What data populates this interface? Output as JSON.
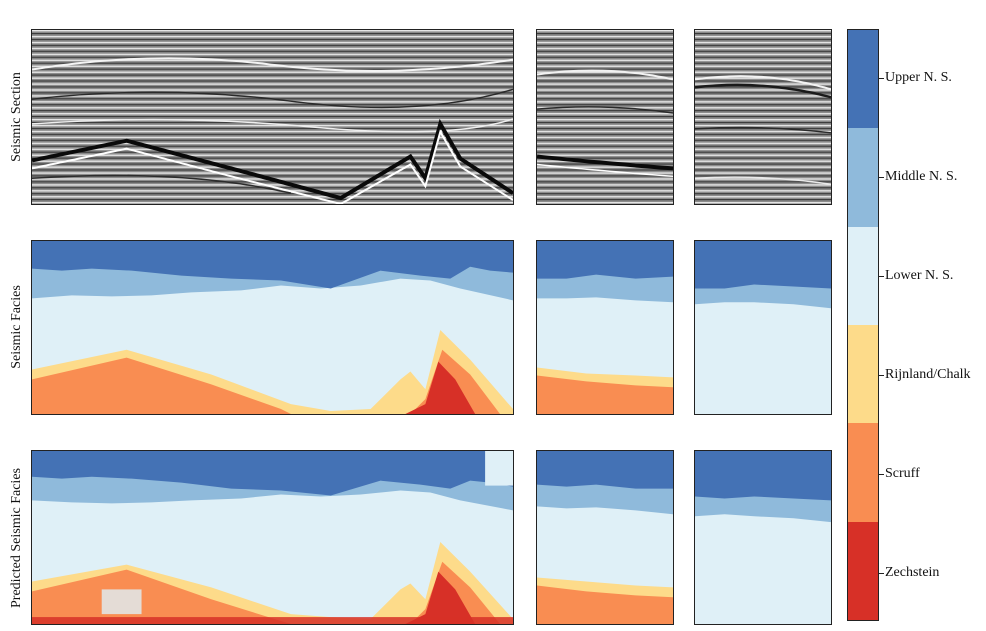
{
  "row_labels": {
    "seismic": "Seismic Section",
    "facies": "Seismic Facies",
    "predicted": "Predicted Seismic Facies"
  },
  "legend": [
    {
      "label": "Upper N. S.",
      "color": "#4472b5"
    },
    {
      "label": "Middle N. S.",
      "color": "#8fbadb"
    },
    {
      "label": "Lower N. S.",
      "color": "#dff0f7"
    },
    {
      "label": "Rijnland/Chalk",
      "color": "#fddb8a"
    },
    {
      "label": "Scruff",
      "color": "#f98d52"
    },
    {
      "label": "Zechstein",
      "color": "#d73027"
    }
  ]
}
